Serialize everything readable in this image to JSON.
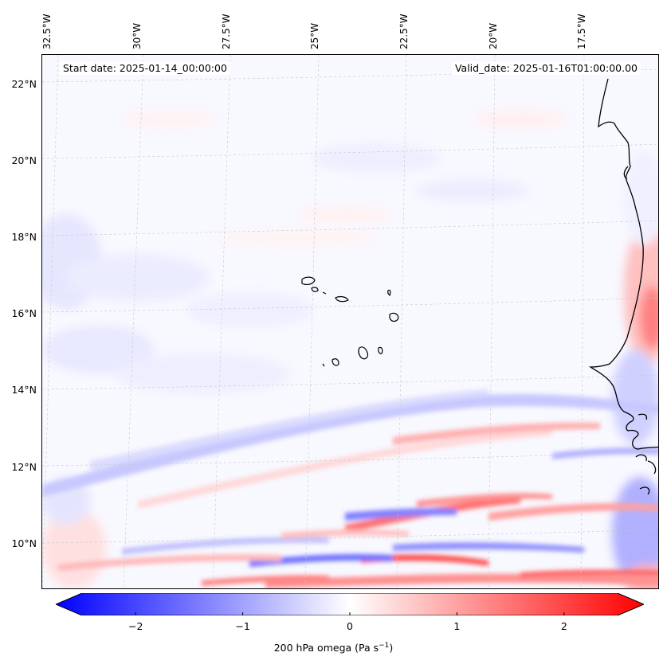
{
  "map": {
    "start_date": "Start date: 2025-01-14_00:00:00",
    "valid_date": "Valid_date: 2025-01-16T01:00:00.00",
    "longitude_labels": [
      "32.5°W",
      "30°W",
      "27.5°W",
      "25°W",
      "22.5°W",
      "20°W",
      "17.5°W"
    ],
    "latitude_labels": [
      "22°N",
      "20°N",
      "18°N",
      "16°N",
      "14°N",
      "12°N",
      "10°N"
    ],
    "colors": {
      "negative": "#0000ff",
      "positive": "#ff0000",
      "neutral": "#ffffff",
      "coastline": "#000000"
    }
  },
  "colorbar": {
    "label_prefix": "200 hPa omega (Pa s",
    "label_exponent": "−1",
    "label_suffix": ")",
    "ticks": [
      "−2",
      "−1",
      "0",
      "1",
      "2"
    ],
    "tick_values": [
      -2,
      -1,
      0,
      1,
      2
    ],
    "range": [
      -2.5,
      2.5
    ],
    "extend": "both",
    "colormap": "bwr"
  }
}
